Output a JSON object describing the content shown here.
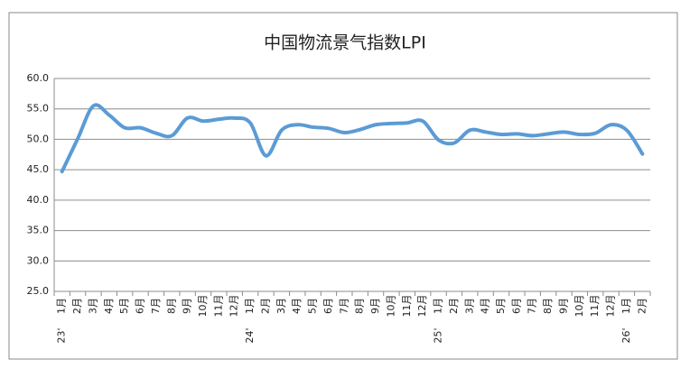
{
  "chart_data": {
    "type": "line",
    "title": "中国物流景气指数LPI",
    "categories": [
      "1月",
      "2月",
      "3月",
      "4月",
      "5月",
      "6月",
      "7月",
      "8月",
      "9月",
      "10月",
      "11月",
      "12月",
      "1月",
      "2月",
      "3月",
      "4月",
      "5月",
      "6月",
      "7月",
      "8月",
      "9月",
      "10月",
      "11月",
      "12月",
      "1月",
      "2月",
      "3月",
      "4月",
      "5月",
      "6月",
      "7月",
      "8月",
      "9月",
      "10月",
      "11月",
      "12月",
      "1月",
      "2月"
    ],
    "years": [
      {
        "label": "23'",
        "start": 0
      },
      {
        "label": "24'",
        "start": 12
      },
      {
        "label": "25'",
        "start": 24
      },
      {
        "label": "26'",
        "start": 36
      }
    ],
    "series": [
      {
        "color": "#5b9bd5",
        "values": [
          44.7,
          50.1,
          55.5,
          54.0,
          51.9,
          51.9,
          51.0,
          50.6,
          53.5,
          53.0,
          53.3,
          53.5,
          52.7,
          47.3,
          51.5,
          52.4,
          52.0,
          51.8,
          51.1,
          51.6,
          52.4,
          52.6,
          52.7,
          53.0,
          49.9,
          49.4,
          51.5,
          51.2,
          50.8,
          50.9,
          50.6,
          50.9,
          51.2,
          50.8,
          51.0,
          52.4,
          51.5,
          47.6
        ]
      }
    ],
    "ylim": [
      25,
      60
    ],
    "yticks": [
      {
        "value": 25,
        "label": "25.0"
      },
      {
        "value": 30,
        "label": "30.0"
      },
      {
        "value": 35,
        "label": "35.0"
      },
      {
        "value": 40,
        "label": "40.0"
      },
      {
        "value": 45,
        "label": "45.0"
      },
      {
        "value": 50,
        "label": "50.0"
      },
      {
        "value": 55,
        "label": "55.0"
      },
      {
        "value": 60,
        "label": "60.0"
      }
    ],
    "grid": true
  }
}
